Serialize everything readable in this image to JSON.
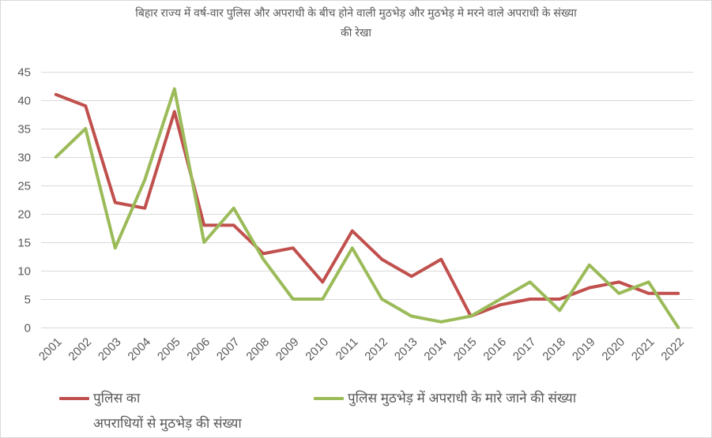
{
  "chart_data": {
    "type": "line",
    "title": "बिहार राज्य में वर्ष-वार पुलिस और अपराधी के बीच होने वाली मुठभेड़ और मुठभेड़ मे मरने वाले अपराधी के संख्या की रेखा",
    "categories": [
      "2001",
      "2002",
      "2003",
      "2004",
      "2005",
      "2006",
      "2007",
      "2008",
      "2009",
      "2010",
      "2011",
      "2012",
      "2013",
      "2014",
      "2015",
      "2016",
      "2017",
      "2018",
      "2019",
      "2020",
      "2021",
      "2022"
    ],
    "series": [
      {
        "name": "पुलिस का अपराधियों से मुठभेड़ की संख्या",
        "color": "#C0504D",
        "values": [
          41,
          39,
          22,
          21,
          38,
          18,
          18,
          13,
          14,
          8,
          17,
          12,
          9,
          12,
          2,
          4,
          5,
          5,
          7,
          8,
          6,
          6
        ]
      },
      {
        "name": "पुलिस मुठभेड़ में अपराधी के मारे जाने की संख्या",
        "color": "#9BBB59",
        "values": [
          30,
          35,
          14,
          26,
          42,
          15,
          21,
          12,
          5,
          5,
          14,
          5,
          2,
          1,
          2,
          5,
          8,
          3,
          11,
          6,
          8,
          0
        ]
      }
    ],
    "ylim": [
      0,
      45
    ],
    "yticks": [
      0,
      5,
      10,
      15,
      20,
      25,
      30,
      35,
      40,
      45
    ],
    "grid": true,
    "legend": "bottom"
  }
}
